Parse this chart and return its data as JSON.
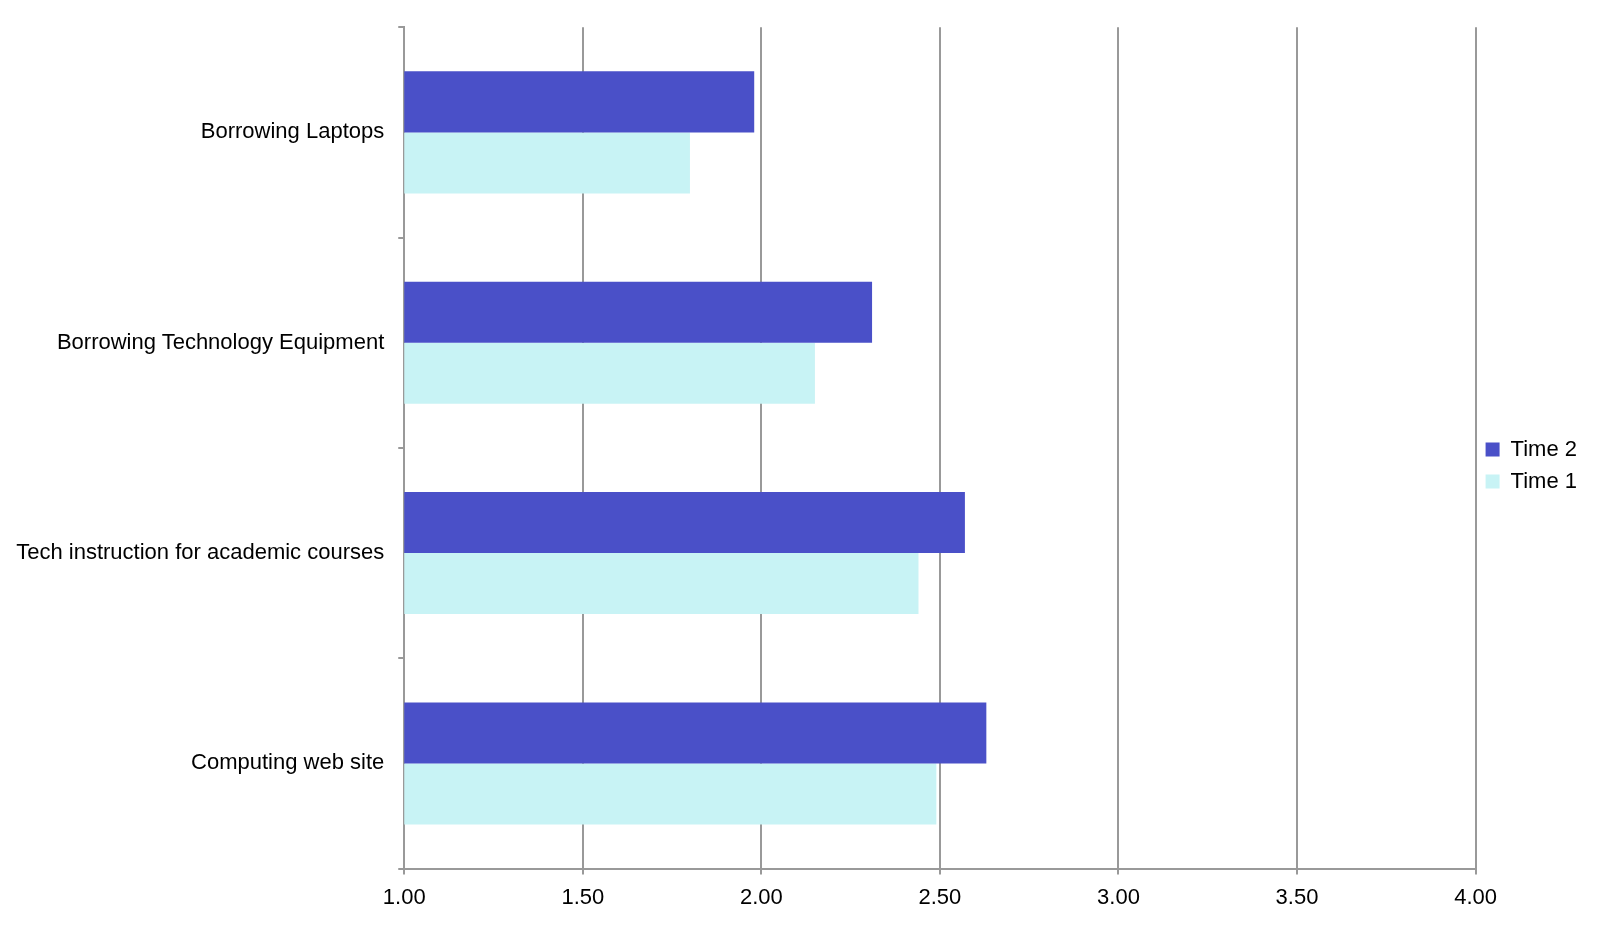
{
  "chart_data": {
    "type": "bar",
    "orientation": "horizontal",
    "categories": [
      "Borrowing Laptops",
      "Borrowing Technology Equipment",
      "Tech instruction for academic courses",
      "Computing web site"
    ],
    "series": [
      {
        "name": "Time 2",
        "color": "#4a50c8",
        "values": [
          1.98,
          2.31,
          2.57,
          2.63
        ]
      },
      {
        "name": "Time 1",
        "color": "#c8f3f5",
        "values": [
          1.8,
          2.15,
          2.44,
          2.49
        ]
      }
    ],
    "xlim": [
      1,
      4
    ],
    "xticks": [
      {
        "value": 1,
        "label": "1.00"
      },
      {
        "value": 1.5,
        "label": "1.50"
      },
      {
        "value": 2,
        "label": "2.00"
      },
      {
        "value": 2.5,
        "label": "2.50"
      },
      {
        "value": 3,
        "label": "3.00"
      },
      {
        "value": 3.5,
        "label": "3.50"
      },
      {
        "value": 4,
        "label": "4.00"
      }
    ],
    "grid": "x",
    "legend": "right"
  }
}
